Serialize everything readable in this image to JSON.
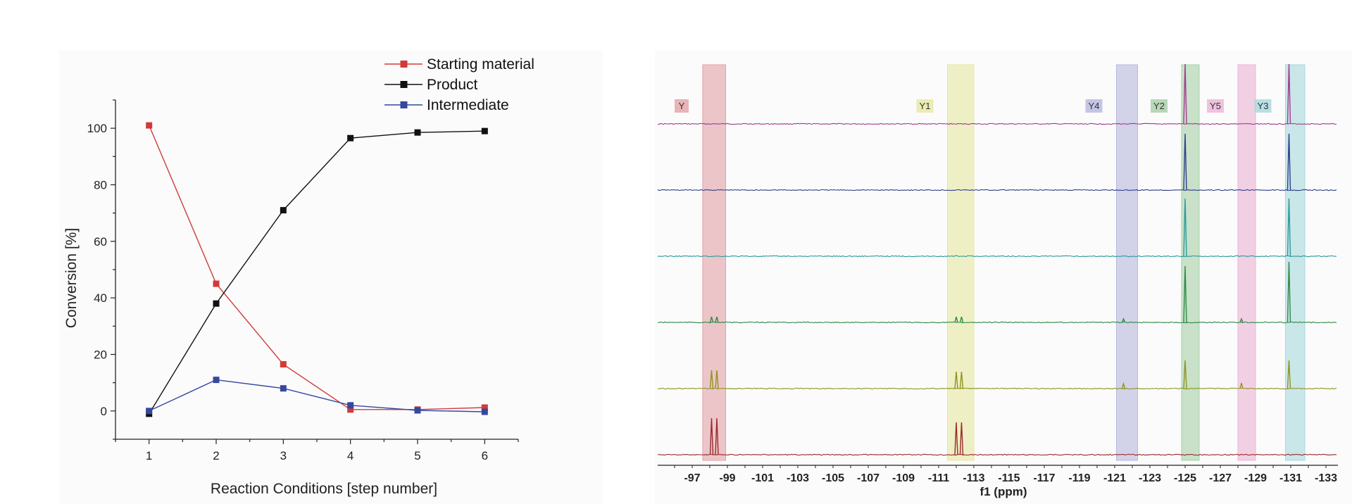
{
  "chart_data": [
    {
      "type": "line",
      "xlabel": "Reaction Conditions [step number]",
      "ylabel": "Conversion [%]",
      "x": [
        1,
        2,
        3,
        4,
        5,
        6
      ],
      "xlim": [
        0.5,
        6.5
      ],
      "ylim": [
        -10,
        110
      ],
      "x_ticks": [
        "1",
        "2",
        "3",
        "4",
        "5",
        "6"
      ],
      "y_ticks": [
        "0",
        "20",
        "40",
        "60",
        "80",
        "100"
      ],
      "legend_position": "top-right",
      "series": [
        {
          "name": "Starting material",
          "color": "#d23a3a",
          "values": [
            101,
            45,
            16.5,
            0.5,
            0.5,
            1.2
          ]
        },
        {
          "name": "Product",
          "color": "#111111",
          "values": [
            -1,
            38,
            71,
            96.5,
            98.5,
            99
          ]
        },
        {
          "name": "Intermediate",
          "color": "#3548a0",
          "values": [
            0,
            11,
            8,
            2,
            0.2,
            -0.3
          ]
        }
      ]
    },
    {
      "type": "line",
      "xlabel": "f1 (ppm)",
      "xlim": [
        -95.2,
        -133.6
      ],
      "x_ticks": [
        "-97",
        "-99",
        "-101",
        "-103",
        "-105",
        "-107",
        "-109",
        "-111",
        "-113",
        "-115",
        "-117",
        "-119",
        "-121",
        "-123",
        "-125",
        "-127",
        "-129",
        "-131",
        "-133"
      ],
      "bands": [
        {
          "label": "Y",
          "from": -97.6,
          "to": -98.9,
          "color": "#e3a2a8"
        },
        {
          "label": "Y1",
          "from": -111.5,
          "to": -113.0,
          "color": "#e6e8a2"
        },
        {
          "label": "Y4",
          "from": -121.1,
          "to": -122.3,
          "color": "#b7b8de"
        },
        {
          "label": "Y2",
          "from": -124.8,
          "to": -125.8,
          "color": "#a6d0a6"
        },
        {
          "label": "Y5",
          "from": -128.0,
          "to": -129.0,
          "color": "#ecb4d6"
        },
        {
          "label": "Y3",
          "from": -130.7,
          "to": -131.8,
          "color": "#a8d8de"
        }
      ],
      "series": [
        {
          "color": "#a03a8e",
          "peaks": [
            {
              "ppm": -125.0,
              "h": 85
            },
            {
              "ppm": -130.9,
              "h": 85
            }
          ]
        },
        {
          "color": "#2e3f8a",
          "peaks": [
            {
              "ppm": -125.0,
              "h": 80
            },
            {
              "ppm": -130.9,
              "h": 80
            }
          ]
        },
        {
          "color": "#2a9a9a",
          "peaks": [
            {
              "ppm": -125.0,
              "h": 82
            },
            {
              "ppm": -130.9,
              "h": 82
            }
          ]
        },
        {
          "color": "#2e8a45",
          "peaks": [
            {
              "ppm": -98.1,
              "h": 8
            },
            {
              "ppm": -98.4,
              "h": 8
            },
            {
              "ppm": -112.0,
              "h": 8
            },
            {
              "ppm": -112.3,
              "h": 8
            },
            {
              "ppm": -121.5,
              "h": 5
            },
            {
              "ppm": -125.0,
              "h": 80
            },
            {
              "ppm": -128.2,
              "h": 5
            },
            {
              "ppm": -130.9,
              "h": 86
            }
          ]
        },
        {
          "color": "#8f9420",
          "peaks": [
            {
              "ppm": -98.1,
              "h": 26
            },
            {
              "ppm": -98.4,
              "h": 26
            },
            {
              "ppm": -112.0,
              "h": 24
            },
            {
              "ppm": -112.3,
              "h": 24
            },
            {
              "ppm": -121.5,
              "h": 7
            },
            {
              "ppm": -125.0,
              "h": 40
            },
            {
              "ppm": -128.2,
              "h": 8
            },
            {
              "ppm": -130.9,
              "h": 40
            }
          ]
        },
        {
          "color": "#9a2a2a",
          "peaks": [
            {
              "ppm": -98.1,
              "h": 52
            },
            {
              "ppm": -98.4,
              "h": 52
            },
            {
              "ppm": -112.0,
              "h": 46
            },
            {
              "ppm": -112.3,
              "h": 46
            }
          ]
        }
      ]
    }
  ]
}
